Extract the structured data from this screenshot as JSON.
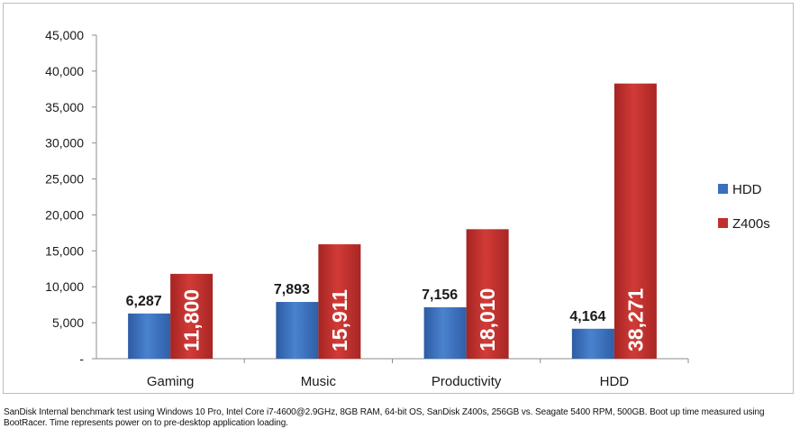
{
  "chart_data": {
    "type": "bar",
    "categories": [
      "Gaming",
      "Music",
      "Productivity",
      "HDD"
    ],
    "series": [
      {
        "name": "HDD",
        "color": "#3b6fbd",
        "values": [
          6287,
          7893,
          7156,
          4164
        ],
        "labels": [
          "6,287",
          "7,893",
          "7,156",
          "4,164"
        ]
      },
      {
        "name": "Z400s",
        "color": "#c0302e",
        "values": [
          11800,
          15911,
          18010,
          38271
        ],
        "labels": [
          "11,800",
          "15,911",
          "18,010",
          "38,271"
        ]
      }
    ],
    "y_ticks": [
      0,
      5000,
      10000,
      15000,
      20000,
      25000,
      30000,
      35000,
      40000,
      45000
    ],
    "y_tick_labels": [
      "-",
      "5,000",
      "10,000",
      "15,000",
      "20,000",
      "25,000",
      "30,000",
      "35,000",
      "40,000",
      "45,000"
    ],
    "ylim": [
      0,
      45000
    ],
    "grid": false,
    "legend": "right"
  },
  "footnote": "SanDisk Internal benchmark test using Windows 10 Pro, Intel Core i7-4600@2.9GHz, 8GB RAM, 64-bit OS, SanDisk Z400s, 256GB vs. Seagate 5400 RPM, 500GB. Boot up time measured using BootRacer. Time represents power on to pre-desktop application loading."
}
